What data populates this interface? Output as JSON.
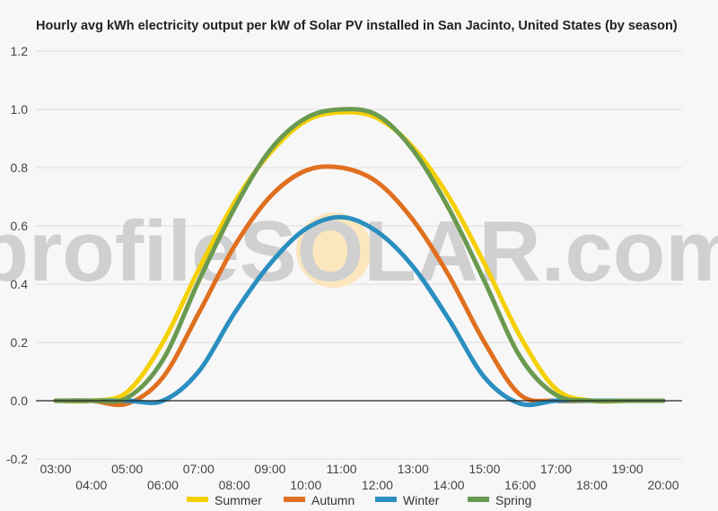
{
  "chart_data": {
    "type": "line",
    "title": "Hourly avg kWh electricity output per kW of Solar PV installed in San Jacinto, United States (by season)",
    "xlabel": "",
    "ylabel": "",
    "watermark": "profileSOLAR.com",
    "ylim": [
      -0.2,
      1.2
    ],
    "y_ticks": [
      "-0.2",
      "0.0",
      "0.2",
      "0.4",
      "0.6",
      "0.8",
      "1.0",
      "1.2"
    ],
    "x_ticks": [
      "03:00",
      "04:00",
      "05:00",
      "06:00",
      "07:00",
      "08:00",
      "09:00",
      "10:00",
      "11:00",
      "12:00",
      "13:00",
      "14:00",
      "15:00",
      "16:00",
      "17:00",
      "18:00",
      "19:00",
      "20:00"
    ],
    "grid": true,
    "legend_position": "bottom",
    "categories": [
      "03:00",
      "04:00",
      "05:00",
      "06:00",
      "07:00",
      "08:00",
      "09:00",
      "10:00",
      "11:00",
      "12:00",
      "13:00",
      "14:00",
      "15:00",
      "16:00",
      "17:00",
      "18:00",
      "19:00",
      "20:00"
    ],
    "series": [
      {
        "name": "Summer",
        "color": "#f5d000",
        "values": [
          0.0,
          0.0,
          0.03,
          0.2,
          0.45,
          0.68,
          0.85,
          0.96,
          0.99,
          0.97,
          0.87,
          0.7,
          0.47,
          0.22,
          0.04,
          0.0,
          0.0,
          0.0
        ]
      },
      {
        "name": "Autumn",
        "color": "#e07020",
        "values": [
          0.0,
          0.0,
          -0.01,
          0.08,
          0.3,
          0.53,
          0.7,
          0.79,
          0.8,
          0.75,
          0.62,
          0.43,
          0.2,
          0.02,
          0.0,
          0.0,
          0.0,
          0.0
        ]
      },
      {
        "name": "Winter",
        "color": "#2a8fc0",
        "values": [
          0.0,
          0.0,
          0.0,
          0.0,
          0.1,
          0.3,
          0.47,
          0.59,
          0.63,
          0.58,
          0.46,
          0.28,
          0.08,
          -0.01,
          0.0,
          0.0,
          0.0,
          0.0
        ]
      },
      {
        "name": "Spring",
        "color": "#6a9a50",
        "values": [
          0.0,
          0.0,
          0.01,
          0.14,
          0.41,
          0.66,
          0.86,
          0.97,
          1.0,
          0.98,
          0.86,
          0.66,
          0.41,
          0.15,
          0.02,
          0.0,
          0.0,
          0.0
        ]
      }
    ]
  }
}
